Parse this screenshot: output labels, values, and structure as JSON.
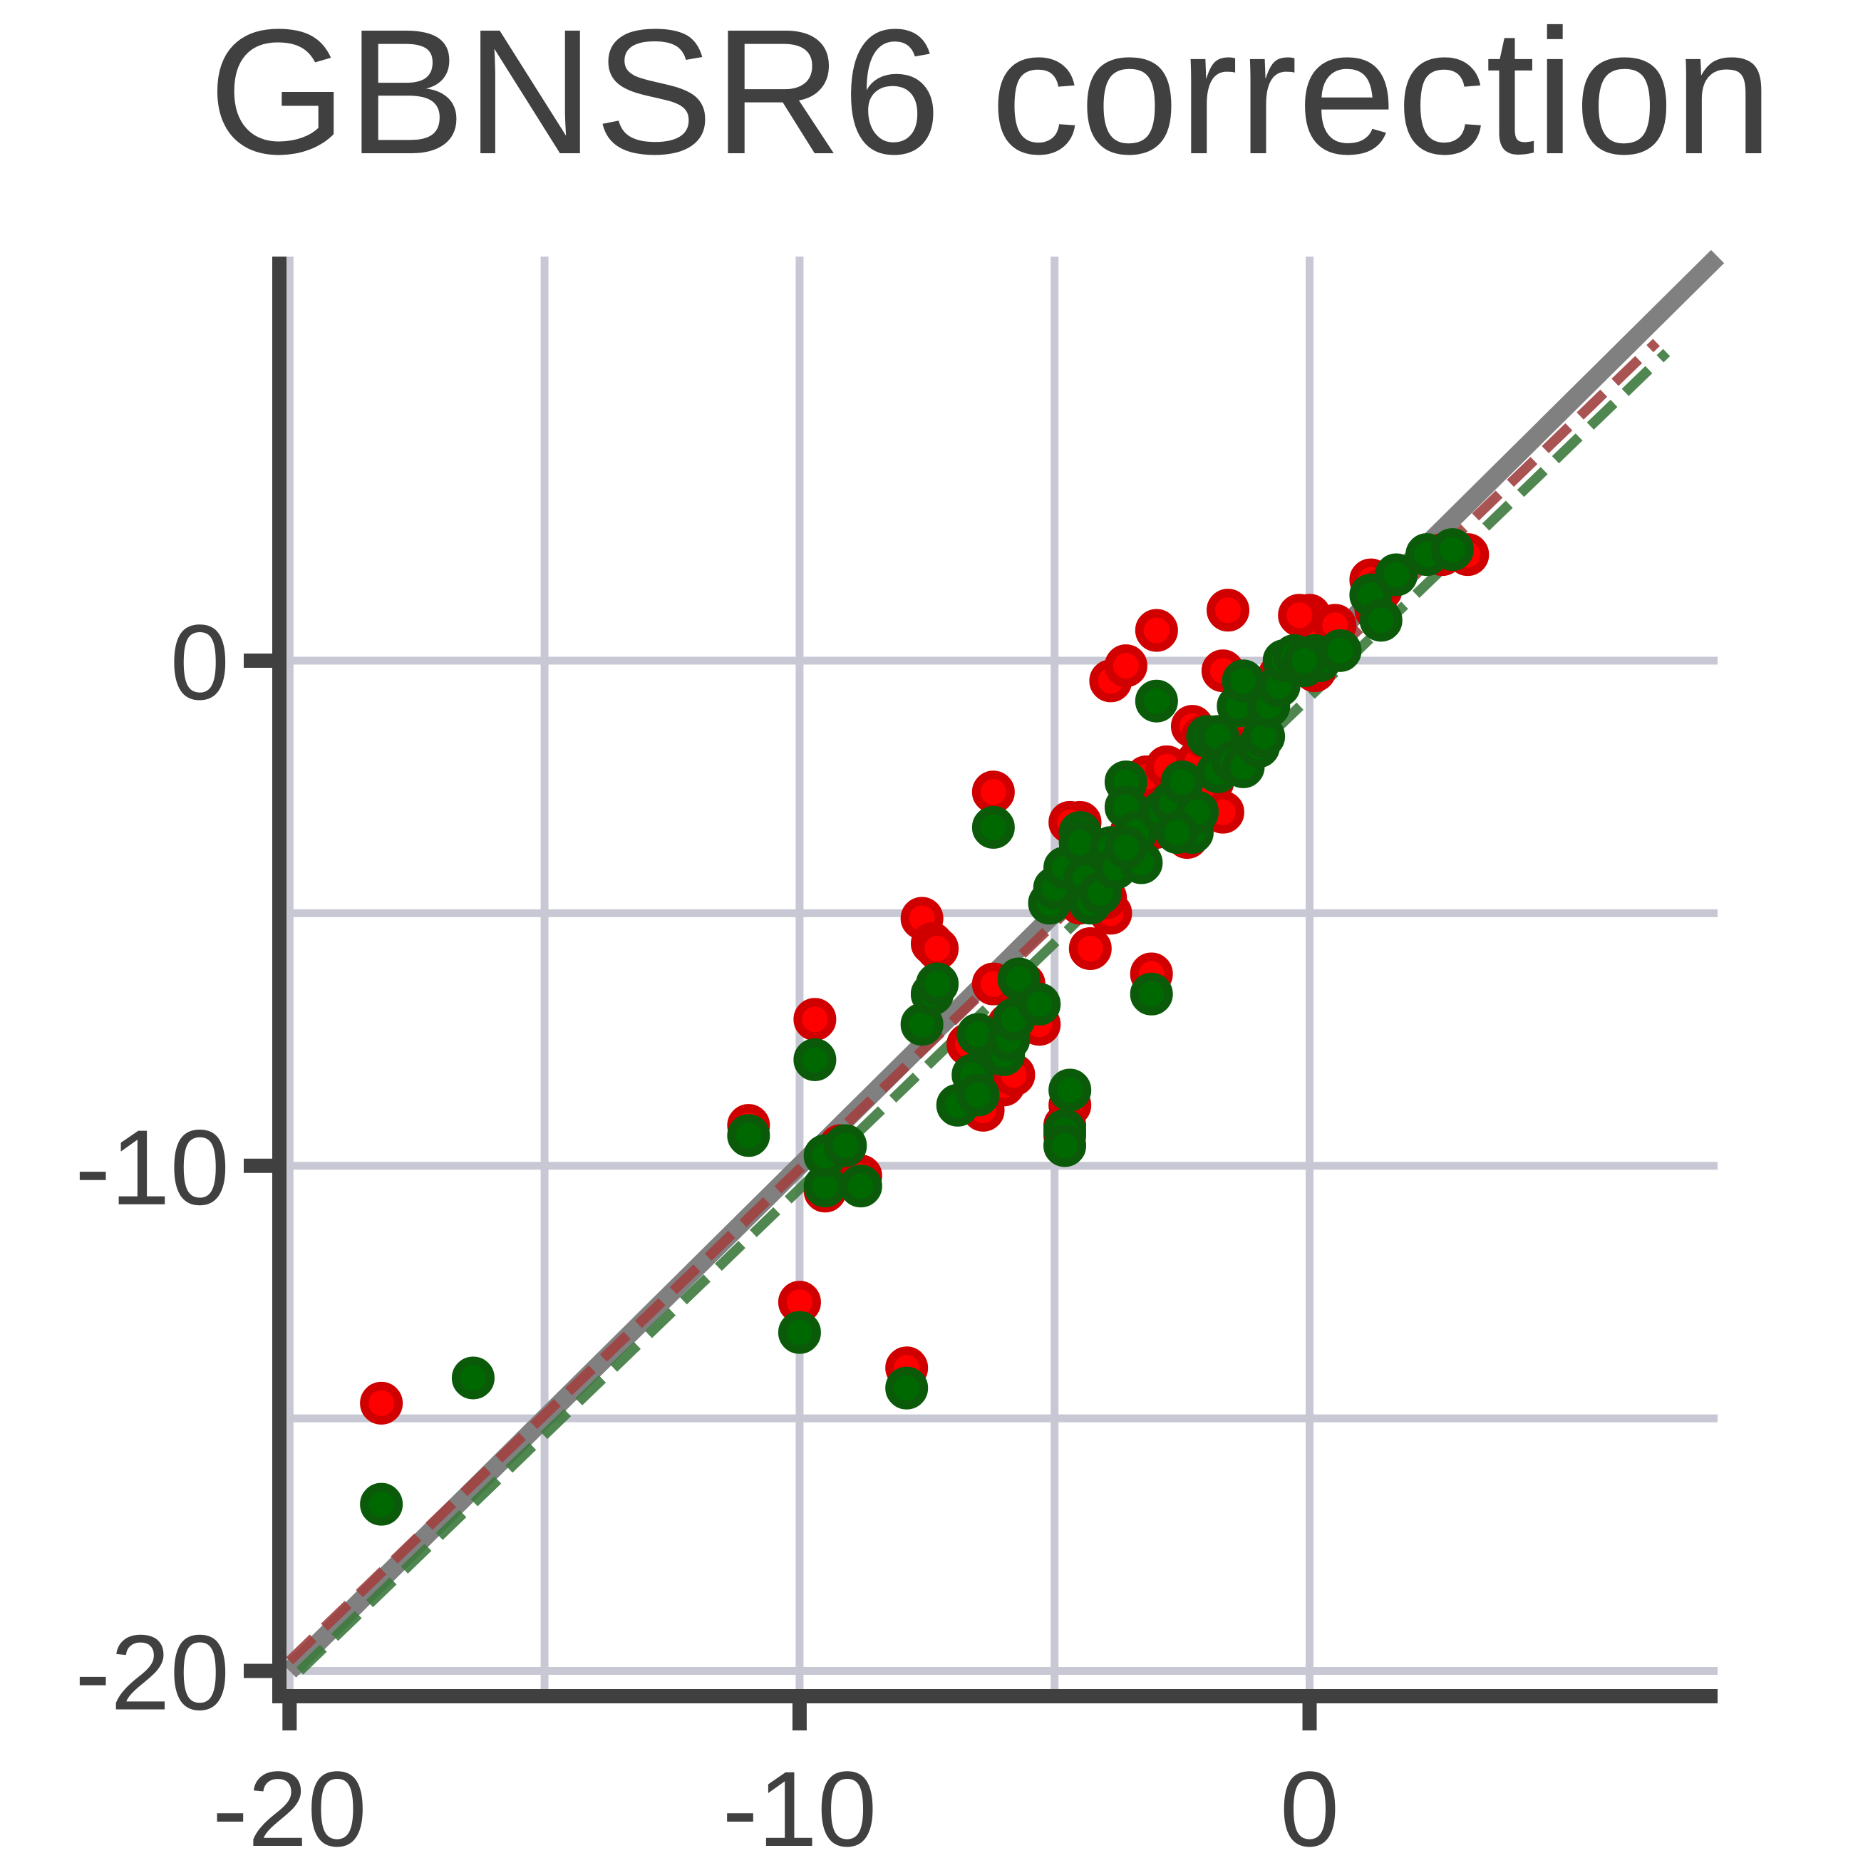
{
  "chart_data": {
    "type": "scatter",
    "title": "GBNSR6 correction",
    "xlabel": "",
    "ylabel": "",
    "xlim": [
      -20.2,
      8
    ],
    "ylim": [
      -20.5,
      8
    ],
    "x_ticks": [
      -20,
      -10,
      0
    ],
    "x_tick_labels": [
      "-20",
      "-10",
      "0"
    ],
    "y_ticks": [
      -20,
      -10,
      0
    ],
    "y_tick_labels": [
      "-20",
      "-10",
      "0"
    ],
    "grid": true,
    "grid_color": "#c8c8d4",
    "reference_line": {
      "from": [
        -20,
        -20
      ],
      "to": [
        8,
        8
      ],
      "color": "#808080",
      "style": "solid"
    },
    "fit_lines": [
      {
        "color": "#a04040",
        "style": "dashed",
        "from": [
          -20,
          -19.8
        ],
        "to": [
          6.8,
          6.3
        ]
      },
      {
        "color": "#3d7a3d",
        "style": "dashed",
        "from": [
          -19.8,
          -20
        ],
        "to": [
          7.0,
          6.1
        ]
      }
    ],
    "series": [
      {
        "color": "#ff0000",
        "edge_color": "#d00000",
        "points": [
          [
            -18.2,
            -14.7
          ],
          [
            -9.7,
            -7.1
          ],
          [
            -11.0,
            -9.2
          ],
          [
            -10.0,
            -12.7
          ],
          [
            -9.5,
            -10.5
          ],
          [
            -8.8,
            -10.2
          ],
          [
            -9.2,
            -9.6
          ],
          [
            -7.9,
            -14.0
          ],
          [
            -7.6,
            -5.1
          ],
          [
            -7.4,
            -5.6
          ],
          [
            -7.3,
            -5.7
          ],
          [
            -7.4,
            -6.6
          ],
          [
            -6.7,
            -7.6
          ],
          [
            -6.4,
            -8.9
          ],
          [
            -6.2,
            -6.4
          ],
          [
            -6.0,
            -8.4
          ],
          [
            -5.9,
            -7.2
          ],
          [
            -5.8,
            -8.2
          ],
          [
            -5.6,
            -6.4
          ],
          [
            -5.3,
            -7.2
          ],
          [
            -4.8,
            -4.3
          ],
          [
            -4.7,
            -8.8
          ],
          [
            -4.8,
            -9.2
          ],
          [
            -4.8,
            -9.4
          ],
          [
            -6.2,
            -2.6
          ],
          [
            -4.5,
            -3.2
          ],
          [
            -4.7,
            -3.2
          ],
          [
            -4.6,
            -4.1
          ],
          [
            -4.5,
            -4.8
          ],
          [
            -4.3,
            -5.7
          ],
          [
            -3.9,
            -5.0
          ],
          [
            -4.0,
            -4.7
          ],
          [
            -4.2,
            -3.8
          ],
          [
            -3.8,
            -3.9
          ],
          [
            -3.4,
            -3.8
          ],
          [
            -3.5,
            -3.4
          ],
          [
            -3.3,
            -3.1
          ],
          [
            -3.2,
            -2.3
          ],
          [
            -3.1,
            -6.2
          ],
          [
            -3.0,
            0.6
          ],
          [
            -3.9,
            -0.4
          ],
          [
            -3.6,
            -0.1
          ],
          [
            -2.8,
            -2.1
          ],
          [
            -2.6,
            -2.6
          ],
          [
            -2.4,
            -3.5
          ],
          [
            -2.2,
            -2.0
          ],
          [
            -2.3,
            -1.3
          ],
          [
            -2.1,
            -1.5
          ],
          [
            -1.9,
            -2.4
          ],
          [
            -1.7,
            -3.0
          ],
          [
            -1.6,
            -1.6
          ],
          [
            -1.4,
            -1.8
          ],
          [
            -1.7,
            -0.2
          ],
          [
            -1.6,
            1.0
          ],
          [
            -1.3,
            -1.1
          ],
          [
            -1.0,
            -0.9
          ],
          [
            -0.8,
            -0.6
          ],
          [
            -0.6,
            -0.3
          ],
          [
            -0.4,
            0.0
          ],
          [
            -0.1,
            0.2
          ],
          [
            0.0,
            0.9
          ],
          [
            0.2,
            0.4
          ],
          [
            0.5,
            0.7
          ],
          [
            1.2,
            1.6
          ],
          [
            1.4,
            1.4
          ],
          [
            2.6,
            2.1
          ],
          [
            3.1,
            2.1
          ],
          [
            -0.2,
            0.9
          ],
          [
            1.3,
            1.0
          ],
          [
            0.1,
            -0.2
          ],
          [
            -2.1,
            -2.5
          ],
          [
            -3.0,
            -3.3
          ]
        ]
      },
      {
        "color": "#006800",
        "edge_color": "#0a5a0a",
        "points": [
          [
            -18.2,
            -16.7
          ],
          [
            -16.4,
            -14.2
          ],
          [
            -9.7,
            -7.9
          ],
          [
            -11.0,
            -9.4
          ],
          [
            -10.0,
            -13.3
          ],
          [
            -9.5,
            -10.4
          ],
          [
            -9.5,
            -9.8
          ],
          [
            -9.1,
            -9.6
          ],
          [
            -8.8,
            -10.4
          ],
          [
            -7.9,
            -14.4
          ],
          [
            -7.6,
            -7.2
          ],
          [
            -7.4,
            -6.6
          ],
          [
            -7.3,
            -6.4
          ],
          [
            -6.9,
            -8.8
          ],
          [
            -6.6,
            -8.2
          ],
          [
            -6.5,
            -8.6
          ],
          [
            -6.5,
            -7.4
          ],
          [
            -6.0,
            -7.8
          ],
          [
            -5.9,
            -7.5
          ],
          [
            -5.8,
            -7.1
          ],
          [
            -5.7,
            -6.3
          ],
          [
            -5.3,
            -6.8
          ],
          [
            -4.7,
            -8.5
          ],
          [
            -4.8,
            -9.3
          ],
          [
            -4.8,
            -9.6
          ],
          [
            -6.2,
            -3.3
          ],
          [
            -5.1,
            -4.8
          ],
          [
            -5.0,
            -4.5
          ],
          [
            -4.8,
            -4.1
          ],
          [
            -4.5,
            -3.4
          ],
          [
            -4.5,
            -3.6
          ],
          [
            -4.4,
            -4.3
          ],
          [
            -4.3,
            -4.8
          ],
          [
            -4.1,
            -4.6
          ],
          [
            -3.9,
            -3.7
          ],
          [
            -3.8,
            -4.1
          ],
          [
            -3.6,
            -2.4
          ],
          [
            -3.6,
            -2.9
          ],
          [
            -3.4,
            -3.4
          ],
          [
            -3.3,
            -4.0
          ],
          [
            -3.1,
            -6.6
          ],
          [
            -3.0,
            -0.8
          ],
          [
            -2.9,
            -3.0
          ],
          [
            -2.7,
            -2.8
          ],
          [
            -2.5,
            -2.4
          ],
          [
            -2.3,
            -3.4
          ],
          [
            -2.2,
            -3.0
          ],
          [
            -2.0,
            -1.5
          ],
          [
            -1.8,
            -1.5
          ],
          [
            -1.8,
            -2.2
          ],
          [
            -1.5,
            -2.0
          ],
          [
            -1.4,
            -0.9
          ],
          [
            -1.3,
            -2.1
          ],
          [
            -1.3,
            -0.4
          ],
          [
            -1.0,
            -1.7
          ],
          [
            -0.9,
            -1.5
          ],
          [
            -0.8,
            -0.9
          ],
          [
            -0.6,
            -0.5
          ],
          [
            -0.5,
            0.0
          ],
          [
            -0.3,
            0.1
          ],
          [
            0.1,
            0.1
          ],
          [
            -0.1,
            -0.1
          ],
          [
            0.2,
            0.0
          ],
          [
            0.6,
            0.2
          ],
          [
            1.2,
            1.3
          ],
          [
            1.4,
            0.8
          ],
          [
            1.7,
            1.7
          ],
          [
            2.3,
            2.1
          ],
          [
            2.8,
            2.2
          ],
          [
            -0.1,
            0.0
          ],
          [
            -2.6,
            -3.4
          ],
          [
            -3.6,
            -3.7
          ]
        ]
      }
    ]
  }
}
